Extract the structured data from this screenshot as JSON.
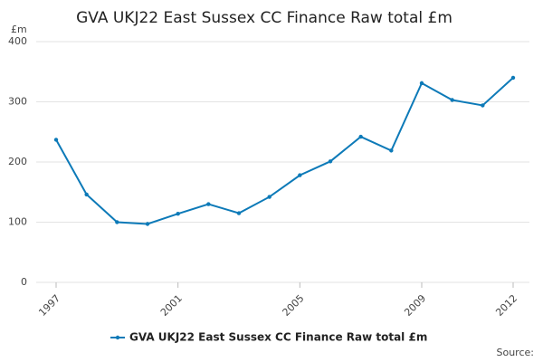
{
  "chart_data": {
    "type": "line",
    "title": "GVA UKJ22 East Sussex CC Finance Raw total £m",
    "y_label": "£m",
    "source": "Source:",
    "x": [
      1997,
      1998,
      1999,
      2000,
      2001,
      2002,
      2003,
      2004,
      2005,
      2006,
      2007,
      2008,
      2009,
      2010,
      2011,
      2012
    ],
    "series": [
      {
        "name": "GVA UKJ22 East Sussex CC Finance Raw total £m",
        "color": "#0d7ab8",
        "values": [
          237,
          146,
          100,
          97,
          114,
          130,
          115,
          142,
          178,
          201,
          242,
          219,
          331,
          303,
          294,
          340
        ]
      }
    ],
    "xlim": [
      1997,
      2012
    ],
    "xticks": [
      1997,
      2001,
      2005,
      2009,
      2012
    ],
    "ylim": [
      0,
      400
    ],
    "yticks": [
      0,
      100,
      200,
      300,
      400
    ],
    "grid": true
  }
}
